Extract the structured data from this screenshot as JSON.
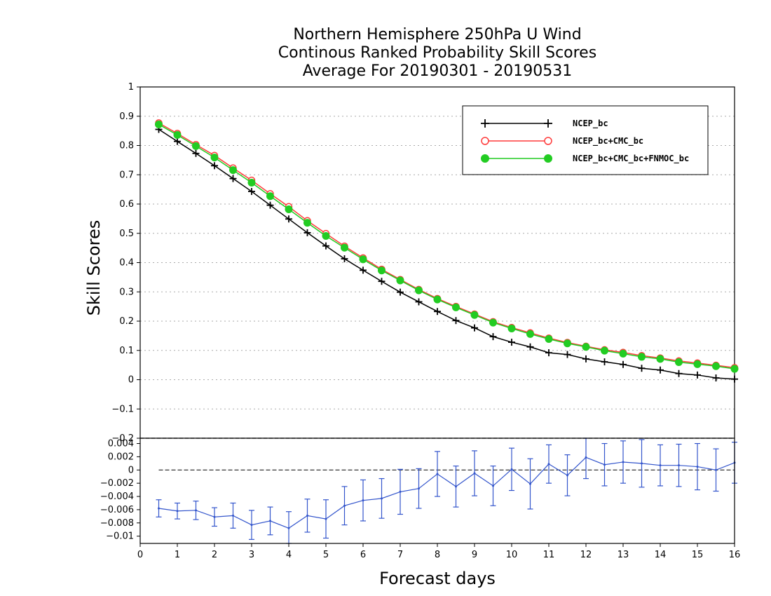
{
  "title_lines": [
    "Northern Hemisphere 250hPa U Wind",
    "Continous Ranked Probability Skill Scores",
    "Average For 20190301 - 20190531"
  ],
  "colors": {
    "ncep": "#000000",
    "ncep_cmc": "#ff3b3b",
    "ncep_cmc_fnmoc": "#22cc22",
    "diff": "#3355cc",
    "grid": "#aaaaaa"
  },
  "chart_data": [
    {
      "type": "line",
      "ylabel": "Skill Scores",
      "xlabel": "Forecast days",
      "xlim": [
        0,
        16
      ],
      "ylim": [
        -0.2,
        1
      ],
      "grid": true,
      "legend_position": "top-right",
      "x_ticks": [
        "0",
        "1",
        "2",
        "3",
        "4",
        "5",
        "6",
        "7",
        "8",
        "9",
        "10",
        "11",
        "12",
        "13",
        "14",
        "15",
        "16"
      ],
      "y_ticks": [
        "−0.2",
        "−0.1",
        "0",
        "0.1",
        "0.2",
        "0.3",
        "0.4",
        "0.5",
        "0.6",
        "0.7",
        "0.8",
        "0.9",
        "1"
      ],
      "x": [
        0.5,
        1,
        1.5,
        2,
        2.5,
        3,
        3.5,
        4,
        4.5,
        5,
        5.5,
        6,
        6.5,
        7,
        7.5,
        8,
        8.5,
        9,
        9.5,
        10,
        10.5,
        11,
        11.5,
        12,
        12.5,
        13,
        13.5,
        14,
        14.5,
        15,
        15.5,
        16
      ],
      "series": [
        {
          "name": "NCEP_bc",
          "marker": "plus",
          "color": "#000000",
          "values": [
            0.855,
            0.814,
            0.773,
            0.731,
            0.687,
            0.643,
            0.596,
            0.549,
            0.502,
            0.457,
            0.413,
            0.374,
            0.336,
            0.299,
            0.266,
            0.233,
            0.202,
            0.177,
            0.147,
            0.128,
            0.112,
            0.092,
            0.086,
            0.071,
            0.061,
            0.052,
            0.039,
            0.033,
            0.021,
            0.016,
            0.006,
            0.002
          ]
        },
        {
          "name": "NCEP_bc+CMC_bc",
          "marker": "open-circle",
          "color": "#ff3b3b",
          "values": [
            0.877,
            0.841,
            0.803,
            0.766,
            0.723,
            0.681,
            0.635,
            0.591,
            0.543,
            0.499,
            0.456,
            0.416,
            0.377,
            0.342,
            0.308,
            0.277,
            0.25,
            0.224,
            0.198,
            0.178,
            0.16,
            0.142,
            0.127,
            0.114,
            0.102,
            0.093,
            0.082,
            0.074,
            0.064,
            0.057,
            0.049,
            0.041
          ]
        },
        {
          "name": "NCEP_bc+CMC_bc+FNMOC_bc",
          "marker": "filled-circle",
          "color": "#22cc22",
          "values": [
            0.872,
            0.836,
            0.798,
            0.759,
            0.716,
            0.673,
            0.627,
            0.582,
            0.536,
            0.491,
            0.451,
            0.411,
            0.373,
            0.339,
            0.305,
            0.274,
            0.247,
            0.221,
            0.195,
            0.175,
            0.156,
            0.139,
            0.124,
            0.112,
            0.099,
            0.089,
            0.078,
            0.071,
            0.06,
            0.053,
            0.046,
            0.037
          ]
        }
      ]
    },
    {
      "type": "line",
      "xlim": [
        0,
        16
      ],
      "ylim": [
        -0.0111,
        0.0048
      ],
      "y_ticks": [
        "0.004",
        "0.002",
        "0",
        "−0.002",
        "−0.004",
        "−0.006",
        "−0.008",
        "−0.01"
      ],
      "x": [
        0.5,
        1,
        1.5,
        2,
        2.5,
        3,
        3.5,
        4,
        4.5,
        5,
        5.5,
        6,
        6.5,
        7,
        7.5,
        8,
        8.5,
        9,
        9.5,
        10,
        10.5,
        11,
        11.5,
        12,
        12.5,
        13,
        13.5,
        14,
        14.5,
        15,
        15.5,
        16
      ],
      "values": [
        -0.0058,
        -0.0062,
        -0.0061,
        -0.0071,
        -0.0069,
        -0.0083,
        -0.0077,
        -0.0088,
        -0.0069,
        -0.0074,
        -0.0054,
        -0.0046,
        -0.0043,
        -0.0033,
        -0.0028,
        -0.0006,
        -0.0025,
        -0.0005,
        -0.0024,
        0.0001,
        -0.0021,
        0.0009,
        -0.0008,
        0.0019,
        0.0008,
        0.0012,
        0.001,
        0.0007,
        0.0007,
        0.0005,
        0.0,
        0.0011
      ],
      "error": [
        0.0013,
        0.0012,
        0.0014,
        0.0014,
        0.0019,
        0.0022,
        0.0021,
        0.0025,
        0.0025,
        0.0029,
        0.0029,
        0.0031,
        0.003,
        0.0034,
        0.003,
        0.0034,
        0.0031,
        0.0034,
        0.003,
        0.0032,
        0.0038,
        0.0029,
        0.0031,
        0.0032,
        0.0032,
        0.0032,
        0.0036,
        0.0031,
        0.0032,
        0.0035,
        0.0032,
        0.0031
      ],
      "zero_line": true
    }
  ]
}
